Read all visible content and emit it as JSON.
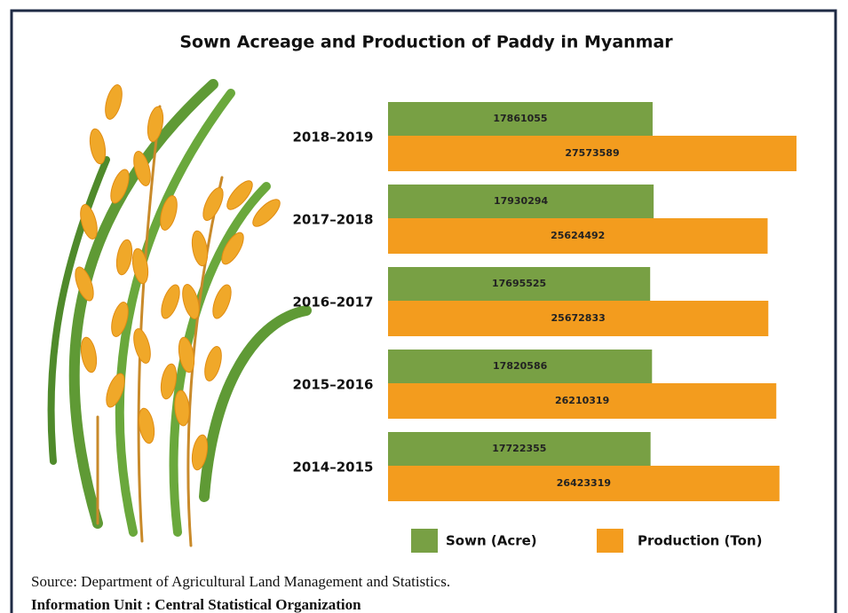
{
  "chart_data": {
    "type": "hbar",
    "title": "Sown Acreage and Production of Paddy in Myanmar",
    "categories": [
      "2018–2019",
      "2017–2018",
      "2016–2017",
      "2015–2016",
      "2014–2015"
    ],
    "series": [
      {
        "name": "Sown (Acre)",
        "color": "#78a044",
        "values": [
          17861055,
          17930294,
          17695525,
          17820586,
          17722355
        ]
      },
      {
        "name": "Production (Ton)",
        "color": "#f39c1e",
        "values": [
          27573589,
          25624492,
          25672833,
          26210319,
          26423319
        ]
      }
    ],
    "source": "Source: Department of Agricultural Land Management and Statistics.",
    "credit": "Information Unit : Central Statistical Organization"
  }
}
